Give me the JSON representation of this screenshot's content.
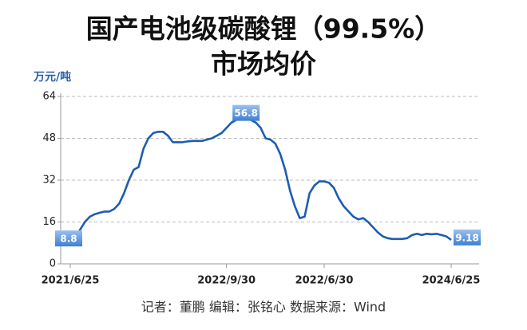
{
  "chart_data": {
    "type": "line",
    "title": [
      "国产电池级碳酸锂（99.5%）",
      "市场均价"
    ],
    "y_label": "万元/吨",
    "source": "记者：董鹏   编辑：张铭心   数据来源：Wind",
    "categories": [
      "2021/6/25",
      null,
      null,
      null,
      null,
      null,
      null,
      null,
      null,
      null,
      null,
      null,
      null,
      null,
      null,
      null,
      null,
      null,
      null,
      null,
      null,
      null,
      null,
      null,
      null,
      null,
      null,
      null,
      null,
      null,
      null,
      null,
      "2022/9/30",
      null,
      null,
      null,
      null,
      null,
      null,
      null,
      null,
      null,
      null,
      null,
      null,
      null,
      null,
      null,
      null,
      null,
      null,
      null,
      "2022/6/30",
      null,
      null,
      null,
      null,
      null,
      null,
      null,
      null,
      null,
      null,
      null,
      null,
      null,
      null,
      null,
      null,
      null,
      null,
      null,
      null,
      null,
      null,
      null,
      null,
      null,
      "2024/6/25"
    ],
    "values": [
      8.8,
      10,
      13,
      16,
      18,
      19,
      19.5,
      20,
      20,
      21,
      23,
      27,
      32,
      36,
      37,
      44,
      48,
      50,
      50.5,
      50.5,
      49,
      46.5,
      46.5,
      46.5,
      46.8,
      47,
      47,
      47,
      47.5,
      48,
      49,
      50,
      52,
      54,
      55,
      55.5,
      56.8,
      55,
      54,
      52,
      48,
      47.5,
      46,
      42,
      36,
      28,
      22,
      17.5,
      18,
      27,
      30,
      31.5,
      31.5,
      31,
      29,
      25,
      22,
      20,
      18,
      17,
      17.5,
      16,
      14,
      12,
      10.5,
      9.8,
      9.5,
      9.5,
      9.5,
      9.8,
      11,
      11.5,
      11,
      11.5,
      11.3,
      11.5,
      11,
      10.5,
      9.18
    ],
    "color": "#1d5cb3",
    "ylim": [
      0,
      64
    ],
    "yticks": [
      0,
      16,
      32,
      48,
      64
    ],
    "grid": true
  }
}
